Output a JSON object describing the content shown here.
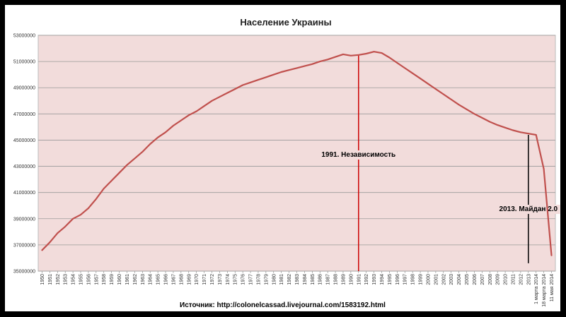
{
  "chart_data": {
    "type": "line",
    "title": "Население Украины",
    "xlabel": "",
    "ylabel": "",
    "ylim": [
      35000000,
      53000000
    ],
    "yticks": [
      "35000000",
      "37000000",
      "39000000",
      "41000000",
      "43000000",
      "45000000",
      "47000000",
      "49000000",
      "51000000",
      "53000000"
    ],
    "yticks_values": [
      35000000,
      37000000,
      39000000,
      41000000,
      43000000,
      45000000,
      47000000,
      49000000,
      51000000,
      53000000
    ],
    "categories": [
      "1950",
      "1951",
      "1952",
      "1953",
      "1954",
      "1955",
      "1956",
      "1957",
      "1958",
      "1959",
      "1960",
      "1961",
      "1962",
      "1963",
      "1964",
      "1965",
      "1966",
      "1967",
      "1968",
      "1969",
      "1970",
      "1971",
      "1972",
      "1973",
      "1974",
      "1975",
      "1976",
      "1977",
      "1978",
      "1979",
      "1980",
      "1981",
      "1982",
      "1983",
      "1984",
      "1985",
      "1986",
      "1987",
      "1988",
      "1989",
      "1990",
      "1991",
      "1992",
      "1993",
      "1994",
      "1995",
      "1996",
      "1997",
      "1998",
      "1999",
      "2000",
      "2001",
      "2002",
      "2003",
      "2004",
      "2005",
      "2006",
      "2007",
      "2008",
      "2009",
      "2010",
      "2011",
      "2012",
      "2013",
      "1 марта 2014",
      "18 марта 2014",
      "11 мая 2014"
    ],
    "series": [
      {
        "color": "#c0504d",
        "values": [
          36600000,
          37200000,
          37900000,
          38400000,
          39000000,
          39300000,
          39800000,
          40500000,
          41300000,
          41900000,
          42500000,
          43100000,
          43600000,
          44100000,
          44700000,
          45200000,
          45600000,
          46100000,
          46500000,
          46900000,
          47200000,
          47600000,
          48000000,
          48300000,
          48600000,
          48900000,
          49200000,
          49400000,
          49600000,
          49800000,
          50000000,
          50200000,
          50350000,
          50500000,
          50650000,
          50800000,
          51000000,
          51150000,
          51350000,
          51550000,
          51450000,
          51500000,
          51600000,
          51750000,
          51650000,
          51300000,
          50900000,
          50500000,
          50100000,
          49700000,
          49300000,
          48900000,
          48500000,
          48100000,
          47700000,
          47350000,
          47000000,
          46700000,
          46400000,
          46150000,
          45950000,
          45750000,
          45600000,
          45500000,
          45400000,
          42800000,
          36200000
        ]
      }
    ],
    "annotations": [
      {
        "label": "1991.  Независимость",
        "x_category": "1991",
        "line_color": "#cc0000",
        "line_from": 35000000,
        "line_to": 51500000
      },
      {
        "label": "2013. Майдан 2.0",
        "x_category": "2013",
        "line_color": "#000000",
        "line_from": 35600000,
        "line_to": 45400000
      }
    ],
    "grid": true,
    "legend": "none",
    "plot_background": "#f2dcdb"
  },
  "source_label": "Источник:   http://colonelcassad.livejournal.com/1583192.html"
}
